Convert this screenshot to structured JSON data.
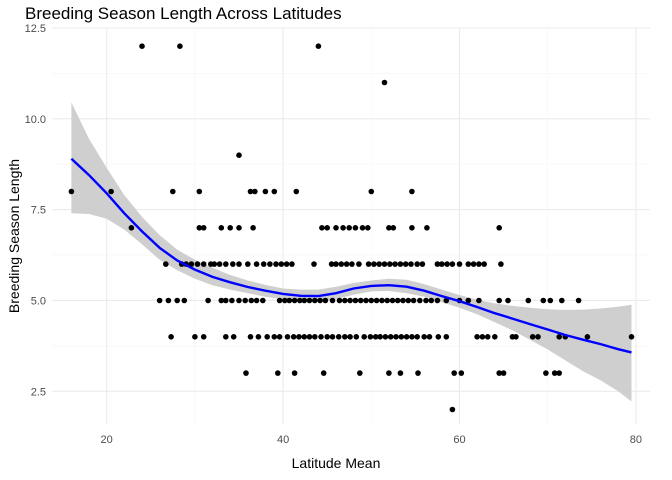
{
  "chart_data": {
    "type": "scatter",
    "title": "Breeding Season Length Across Latitudes",
    "xlabel": "Latitude Mean",
    "ylabel": "Breeding Season Length",
    "xlim": [
      13.8,
      81.6
    ],
    "ylim": [
      1.6,
      12.5
    ],
    "xticks": [
      20,
      40,
      60,
      80
    ],
    "yticks": [
      2.5,
      5.0,
      7.5,
      10.0,
      12.5
    ],
    "ytick_labels": [
      "2.5",
      "5.0",
      "7.5",
      "10.0",
      "12.5"
    ],
    "grid": true,
    "colors": {
      "points": "#000000",
      "smooth": "#0000ff",
      "ribbon": "#cccccc",
      "grid_major": "#ebebeb",
      "grid_minor": "#f5f5f5"
    },
    "points": [
      [
        16,
        8
      ],
      [
        20.5,
        8
      ],
      [
        22.8,
        7
      ],
      [
        24,
        12
      ],
      [
        28.3,
        12
      ],
      [
        44,
        12
      ],
      [
        51.5,
        11
      ],
      [
        35,
        9
      ],
      [
        27.5,
        8
      ],
      [
        30.5,
        8
      ],
      [
        36.3,
        8
      ],
      [
        36.8,
        8
      ],
      [
        38,
        8
      ],
      [
        39,
        8
      ],
      [
        41.5,
        8
      ],
      [
        50,
        8
      ],
      [
        54.6,
        8
      ],
      [
        30.5,
        7
      ],
      [
        31,
        7
      ],
      [
        33,
        7
      ],
      [
        34,
        7
      ],
      [
        35,
        7
      ],
      [
        36.6,
        7
      ],
      [
        44.4,
        7
      ],
      [
        45,
        7
      ],
      [
        46,
        7
      ],
      [
        46.8,
        7
      ],
      [
        47.5,
        7
      ],
      [
        48.2,
        7
      ],
      [
        49,
        7
      ],
      [
        49.6,
        7
      ],
      [
        52,
        7
      ],
      [
        52.5,
        7
      ],
      [
        54.6,
        7
      ],
      [
        56.3,
        7
      ],
      [
        64.5,
        7
      ],
      [
        26.7,
        6
      ],
      [
        28.5,
        6
      ],
      [
        29,
        6
      ],
      [
        29.6,
        6
      ],
      [
        30.3,
        6
      ],
      [
        31,
        6
      ],
      [
        31.8,
        6
      ],
      [
        32.2,
        6
      ],
      [
        32.8,
        6
      ],
      [
        33.5,
        6
      ],
      [
        34.3,
        6
      ],
      [
        35,
        6
      ],
      [
        36,
        6
      ],
      [
        37,
        6
      ],
      [
        37.8,
        6
      ],
      [
        38.5,
        6
      ],
      [
        39.2,
        6
      ],
      [
        39.8,
        6
      ],
      [
        40.4,
        6
      ],
      [
        41,
        6
      ],
      [
        43.5,
        6
      ],
      [
        45.5,
        6
      ],
      [
        46,
        6
      ],
      [
        46.6,
        6
      ],
      [
        47.2,
        6
      ],
      [
        47.8,
        6
      ],
      [
        48.6,
        6
      ],
      [
        49.7,
        6
      ],
      [
        50.3,
        6
      ],
      [
        50.9,
        6
      ],
      [
        51.5,
        6
      ],
      [
        52.1,
        6
      ],
      [
        52.7,
        6
      ],
      [
        53.3,
        6
      ],
      [
        53.9,
        6
      ],
      [
        54.5,
        6
      ],
      [
        55.2,
        6
      ],
      [
        55.8,
        6
      ],
      [
        57.5,
        6
      ],
      [
        58,
        6
      ],
      [
        58.6,
        6
      ],
      [
        59.2,
        6
      ],
      [
        60,
        6
      ],
      [
        61,
        6
      ],
      [
        61.6,
        6
      ],
      [
        62.2,
        6
      ],
      [
        62.8,
        6
      ],
      [
        64.7,
        6
      ],
      [
        26,
        5
      ],
      [
        27,
        5
      ],
      [
        28,
        5
      ],
      [
        28.8,
        5
      ],
      [
        31.5,
        5
      ],
      [
        33,
        5
      ],
      [
        33.5,
        5
      ],
      [
        34.2,
        5
      ],
      [
        35,
        5
      ],
      [
        35.7,
        5
      ],
      [
        36.4,
        5
      ],
      [
        37,
        5
      ],
      [
        37.7,
        5
      ],
      [
        39.6,
        5
      ],
      [
        40.2,
        5
      ],
      [
        40.7,
        5
      ],
      [
        41.3,
        5
      ],
      [
        41.9,
        5
      ],
      [
        42.4,
        5
      ],
      [
        43,
        5
      ],
      [
        43.6,
        5
      ],
      [
        44.2,
        5
      ],
      [
        44.8,
        5
      ],
      [
        45.6,
        5
      ],
      [
        46.4,
        5
      ],
      [
        47,
        5
      ],
      [
        47.6,
        5
      ],
      [
        48.2,
        5
      ],
      [
        48.8,
        5
      ],
      [
        49.4,
        5
      ],
      [
        50,
        5
      ],
      [
        50.6,
        5
      ],
      [
        51.2,
        5
      ],
      [
        51.8,
        5
      ],
      [
        52.4,
        5
      ],
      [
        53,
        5
      ],
      [
        53.6,
        5
      ],
      [
        54.2,
        5
      ],
      [
        54.8,
        5
      ],
      [
        55.5,
        5
      ],
      [
        56.2,
        5
      ],
      [
        56.8,
        5
      ],
      [
        57.5,
        5
      ],
      [
        58.5,
        5
      ],
      [
        60,
        5
      ],
      [
        61,
        5
      ],
      [
        62.2,
        5
      ],
      [
        64.5,
        5
      ],
      [
        65.5,
        5
      ],
      [
        67.8,
        5
      ],
      [
        69.5,
        5
      ],
      [
        70.3,
        5
      ],
      [
        71.6,
        5
      ],
      [
        73.5,
        5
      ],
      [
        27.3,
        4
      ],
      [
        30,
        4
      ],
      [
        31,
        4
      ],
      [
        33.5,
        4
      ],
      [
        34.4,
        4
      ],
      [
        36.3,
        4
      ],
      [
        37.2,
        4
      ],
      [
        38.2,
        4
      ],
      [
        39,
        4
      ],
      [
        39.6,
        4
      ],
      [
        40.5,
        4
      ],
      [
        41.2,
        4
      ],
      [
        41.8,
        4
      ],
      [
        42.4,
        4
      ],
      [
        43,
        4
      ],
      [
        43.6,
        4
      ],
      [
        44.3,
        4
      ],
      [
        45,
        4
      ],
      [
        45.6,
        4
      ],
      [
        46.3,
        4
      ],
      [
        47,
        4
      ],
      [
        47.6,
        4
      ],
      [
        48.3,
        4
      ],
      [
        49.2,
        4
      ],
      [
        49.9,
        4
      ],
      [
        50.5,
        4
      ],
      [
        51,
        4
      ],
      [
        51.6,
        4
      ],
      [
        52.2,
        4
      ],
      [
        52.8,
        4
      ],
      [
        53.4,
        4
      ],
      [
        54,
        4
      ],
      [
        54.6,
        4
      ],
      [
        55.2,
        4
      ],
      [
        56,
        4
      ],
      [
        56.6,
        4
      ],
      [
        57.6,
        4
      ],
      [
        58.5,
        4
      ],
      [
        62,
        4
      ],
      [
        62.6,
        4
      ],
      [
        63.2,
        4
      ],
      [
        64,
        4
      ],
      [
        66,
        4
      ],
      [
        66.4,
        4
      ],
      [
        68.3,
        4
      ],
      [
        68.9,
        4
      ],
      [
        71.3,
        4
      ],
      [
        72,
        4
      ],
      [
        74.5,
        4
      ],
      [
        79.5,
        4
      ],
      [
        35.8,
        3
      ],
      [
        39.4,
        3
      ],
      [
        41.3,
        3
      ],
      [
        44.6,
        3
      ],
      [
        48.7,
        3
      ],
      [
        52,
        3
      ],
      [
        53.3,
        3
      ],
      [
        55.3,
        3
      ],
      [
        59.4,
        3
      ],
      [
        60.2,
        3
      ],
      [
        64.5,
        3
      ],
      [
        65,
        3
      ],
      [
        69.8,
        3
      ],
      [
        70.8,
        3
      ],
      [
        71.3,
        3
      ],
      [
        59.2,
        2
      ]
    ],
    "smooth": [
      [
        16,
        8.9
      ],
      [
        18,
        8.45
      ],
      [
        20,
        7.95
      ],
      [
        22,
        7.4
      ],
      [
        24,
        6.9
      ],
      [
        26,
        6.45
      ],
      [
        28,
        6.1
      ],
      [
        30,
        5.85
      ],
      [
        32,
        5.65
      ],
      [
        34,
        5.5
      ],
      [
        36,
        5.37
      ],
      [
        38,
        5.27
      ],
      [
        40,
        5.18
      ],
      [
        42,
        5.13
      ],
      [
        44,
        5.12
      ],
      [
        46,
        5.2
      ],
      [
        48,
        5.33
      ],
      [
        50,
        5.4
      ],
      [
        52,
        5.42
      ],
      [
        54,
        5.38
      ],
      [
        56,
        5.27
      ],
      [
        58,
        5.12
      ],
      [
        60,
        4.98
      ],
      [
        62,
        4.82
      ],
      [
        64,
        4.65
      ],
      [
        66,
        4.5
      ],
      [
        68,
        4.35
      ],
      [
        70,
        4.2
      ],
      [
        72,
        4.05
      ],
      [
        74,
        3.92
      ],
      [
        76,
        3.8
      ],
      [
        78,
        3.66
      ],
      [
        79.5,
        3.57
      ]
    ],
    "ribbon_upper": [
      [
        16,
        10.45
      ],
      [
        18,
        9.45
      ],
      [
        20,
        8.65
      ],
      [
        22,
        7.9
      ],
      [
        24,
        7.3
      ],
      [
        26,
        6.8
      ],
      [
        28,
        6.4
      ],
      [
        30,
        6.12
      ],
      [
        32,
        5.9
      ],
      [
        34,
        5.7
      ],
      [
        36,
        5.55
      ],
      [
        38,
        5.43
      ],
      [
        40,
        5.33
      ],
      [
        42,
        5.3
      ],
      [
        44,
        5.3
      ],
      [
        46,
        5.38
      ],
      [
        48,
        5.48
      ],
      [
        50,
        5.55
      ],
      [
        52,
        5.6
      ],
      [
        54,
        5.57
      ],
      [
        56,
        5.45
      ],
      [
        58,
        5.3
      ],
      [
        60,
        5.15
      ],
      [
        62,
        5.02
      ],
      [
        64,
        4.92
      ],
      [
        66,
        4.85
      ],
      [
        68,
        4.8
      ],
      [
        70,
        4.76
      ],
      [
        72,
        4.74
      ],
      [
        74,
        4.75
      ],
      [
        76,
        4.78
      ],
      [
        78,
        4.83
      ],
      [
        79.5,
        4.88
      ]
    ],
    "ribbon_lower": [
      [
        16,
        7.4
      ],
      [
        18,
        7.38
      ],
      [
        20,
        7.25
      ],
      [
        22,
        6.95
      ],
      [
        24,
        6.55
      ],
      [
        26,
        6.12
      ],
      [
        28,
        5.83
      ],
      [
        30,
        5.6
      ],
      [
        32,
        5.42
      ],
      [
        34,
        5.3
      ],
      [
        36,
        5.2
      ],
      [
        38,
        5.1
      ],
      [
        40,
        5.03
      ],
      [
        42,
        4.98
      ],
      [
        44,
        4.95
      ],
      [
        46,
        5.04
      ],
      [
        48,
        5.16
      ],
      [
        50,
        5.25
      ],
      [
        52,
        5.26
      ],
      [
        54,
        5.2
      ],
      [
        56,
        5.1
      ],
      [
        58,
        4.95
      ],
      [
        60,
        4.8
      ],
      [
        62,
        4.62
      ],
      [
        64,
        4.4
      ],
      [
        66,
        4.18
      ],
      [
        68,
        3.92
      ],
      [
        70,
        3.65
      ],
      [
        72,
        3.35
      ],
      [
        74,
        3.05
      ],
      [
        76,
        2.8
      ],
      [
        78,
        2.5
      ],
      [
        79.5,
        2.22
      ]
    ]
  }
}
